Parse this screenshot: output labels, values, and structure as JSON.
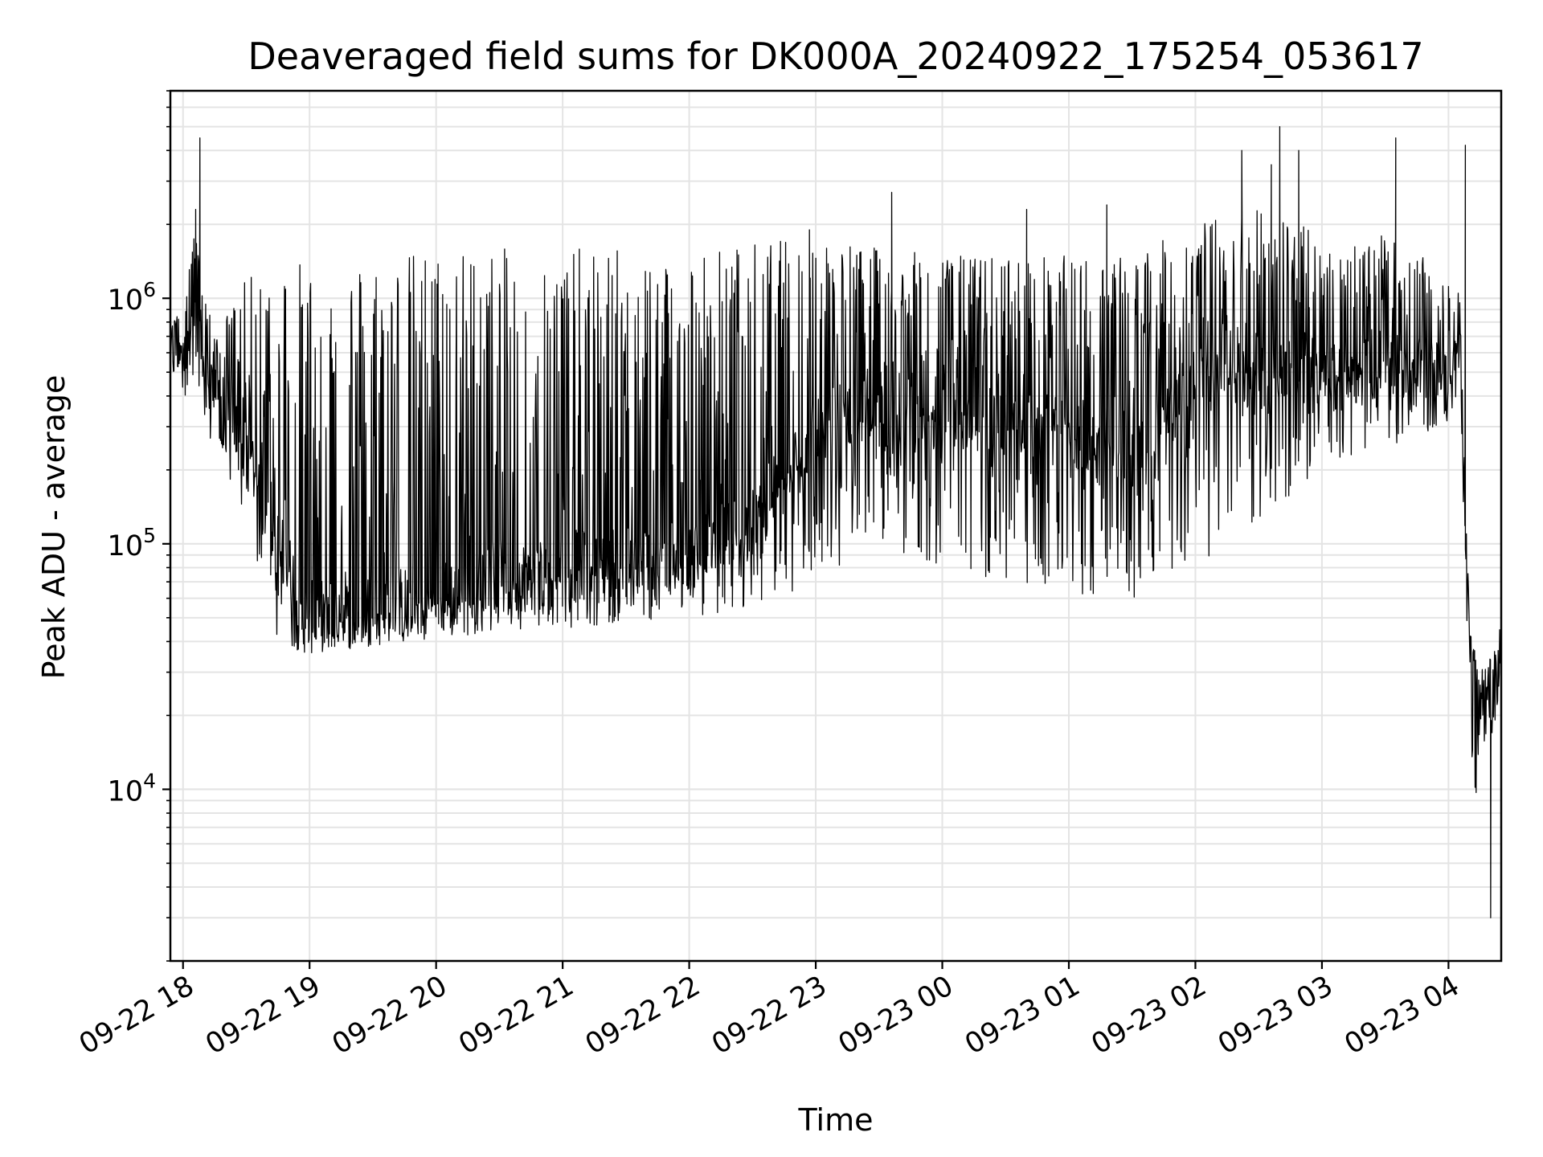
{
  "chart_data": {
    "type": "line",
    "title": "Deaveraged field sums for DK000A_20240922_175254_053617",
    "xlabel": "Time",
    "ylabel": "Peak ADU - average",
    "yscale": "log",
    "ylim": [
      2000,
      7000000
    ],
    "xlim": [
      "2024-09-22 17:54",
      "2024-09-23 04:25"
    ],
    "grid": true,
    "line_color": "#000000",
    "x_ticks": [
      "09-22 18",
      "09-22 19",
      "09-22 20",
      "09-22 21",
      "09-22 22",
      "09-22 23",
      "09-23 00",
      "09-23 01",
      "09-23 02",
      "09-23 03",
      "09-23 04"
    ],
    "y_ticks": [
      {
        "base": "10",
        "exp": "4",
        "value": 10000
      },
      {
        "base": "10",
        "exp": "5",
        "value": 100000
      },
      {
        "base": "10",
        "exp": "6",
        "value": 1000000
      }
    ],
    "series_envelope": {
      "description_note": "",
      "times": [
        "2024-09-22 17:54",
        "2024-09-22 18:05",
        "2024-09-22 18:15",
        "2024-09-22 18:30",
        "2024-09-22 18:45",
        "2024-09-22 19:00",
        "2024-09-22 19:30",
        "2024-09-22 20:00",
        "2024-09-22 20:30",
        "2024-09-22 21:00",
        "2024-09-22 21:30",
        "2024-09-22 22:00",
        "2024-09-22 22:30",
        "2024-09-22 23:00",
        "2024-09-22 23:30",
        "2024-09-23 00:00",
        "2024-09-23 00:30",
        "2024-09-23 01:00",
        "2024-09-23 01:30",
        "2024-09-23 02:00",
        "2024-09-23 02:30",
        "2024-09-23 03:00",
        "2024-09-23 03:30",
        "2024-09-23 04:05",
        "2024-09-23 04:10",
        "2024-09-23 04:15",
        "2024-09-23 04:20",
        "2024-09-23 04:25"
      ],
      "baseline": [
        600000,
        800000,
        400000,
        250000,
        100000,
        50000,
        55000,
        60000,
        70000,
        80000,
        85000,
        90000,
        120000,
        300000,
        400000,
        350000,
        300000,
        280000,
        250000,
        450000,
        500000,
        500000,
        500000,
        600000,
        40000,
        20000,
        25000,
        35000
      ],
      "upper": [
        700000,
        2000000,
        700000,
        1200000,
        1500000,
        1400000,
        1500000,
        1600000,
        1600000,
        1600000,
        1600000,
        1600000,
        1700000,
        1800000,
        1600000,
        1500000,
        1500000,
        1500000,
        1500000,
        2000000,
        2500000,
        1800000,
        1800000,
        1200000,
        50000,
        30000,
        35000,
        40000
      ],
      "lower": [
        500000,
        350000,
        250000,
        120000,
        40000,
        35000,
        38000,
        40000,
        45000,
        45000,
        48000,
        50000,
        55000,
        70000,
        100000,
        80000,
        70000,
        60000,
        60000,
        80000,
        120000,
        200000,
        250000,
        300000,
        20000,
        3000,
        15000,
        25000
      ]
    },
    "spikes": [
      {
        "t": "2024-09-22 18:08",
        "v": 4500000
      },
      {
        "t": "2024-09-22 18:06",
        "v": 2300000
      },
      {
        "t": "2024-09-22 22:57",
        "v": 1900000
      },
      {
        "t": "2024-09-22 23:36",
        "v": 2700000
      },
      {
        "t": "2024-09-23 00:40",
        "v": 2300000
      },
      {
        "t": "2024-09-23 01:18",
        "v": 2400000
      },
      {
        "t": "2024-09-23 02:22",
        "v": 4000000
      },
      {
        "t": "2024-09-23 02:36",
        "v": 3500000
      },
      {
        "t": "2024-09-23 02:40",
        "v": 5000000
      },
      {
        "t": "2024-09-23 02:49",
        "v": 4000000
      },
      {
        "t": "2024-09-23 03:35",
        "v": 4500000
      },
      {
        "t": "2024-09-23 04:08",
        "v": 4200000
      },
      {
        "t": "2024-09-23 04:20",
        "v": 3000
      }
    ]
  }
}
